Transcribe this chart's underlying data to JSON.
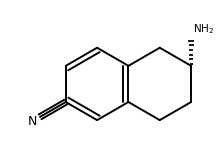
{
  "background_color": "#ffffff",
  "line_color": "#000000",
  "line_width": 1.4,
  "text_color": "#000000",
  "nh2_label": "NH$_2$",
  "n_label": "N",
  "figure_size": [
    2.2,
    1.57
  ],
  "dpi": 100,
  "xlim": [
    -2.5,
    3.2
  ],
  "ylim": [
    -2.0,
    2.3
  ]
}
